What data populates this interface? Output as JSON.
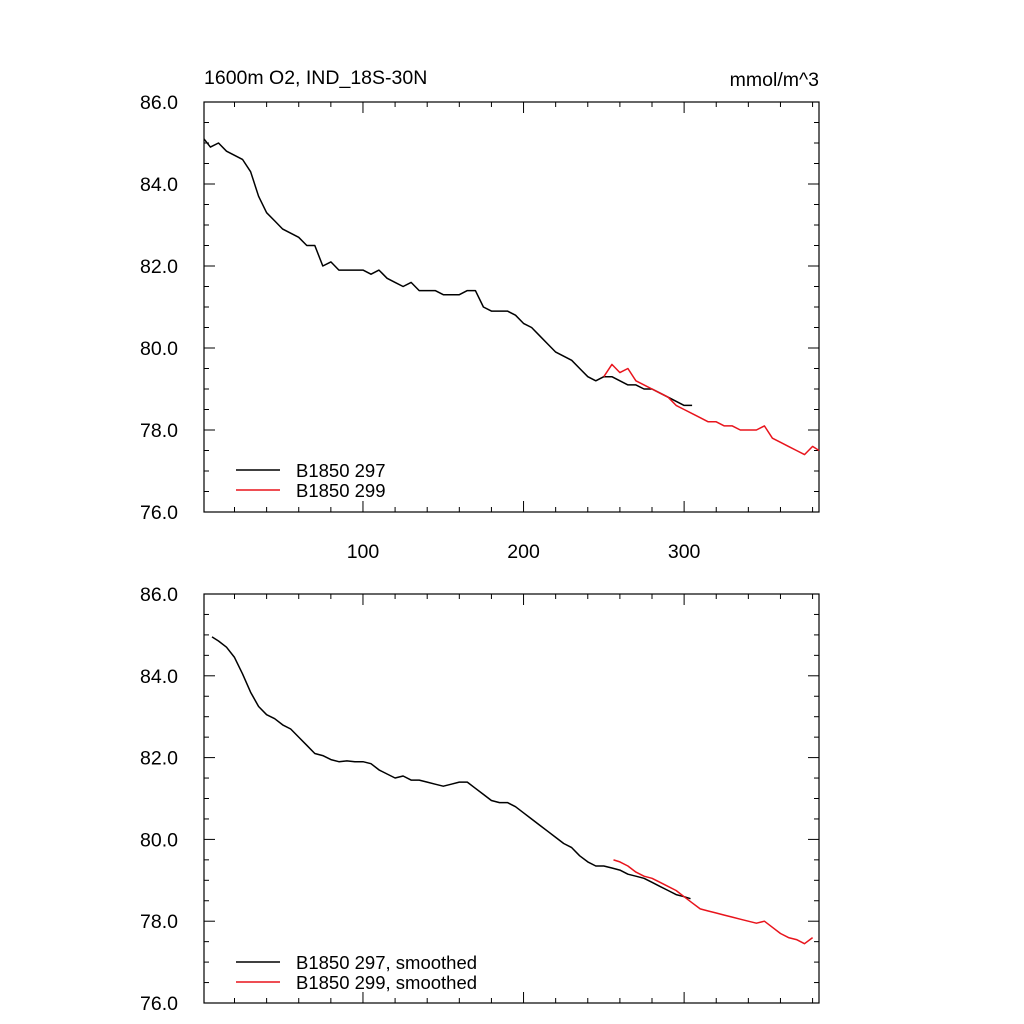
{
  "header": {
    "title": "1600m O2, IND_18S-30N",
    "units": "mmol/m^3"
  },
  "colors": {
    "run297": "#000000",
    "run299": "#e8141c",
    "axis": "#000000",
    "background": "#ffffff"
  },
  "chart_data": [
    {
      "type": "line",
      "panel": "raw",
      "xlim": [
        1,
        384
      ],
      "ylim": [
        76.0,
        86.0
      ],
      "x_ticks": [
        100,
        200,
        300
      ],
      "x_tick_labels": [
        "100",
        "200",
        "300"
      ],
      "y_ticks": [
        76,
        78,
        80,
        82,
        84,
        86
      ],
      "y_tick_labels": [
        "76.0",
        "78.0",
        "80.0",
        "82.0",
        "84.0",
        "86.0"
      ],
      "grid": false,
      "legend_position": "bottom-left",
      "series": [
        {
          "name": "B1850 297",
          "color": "#000000",
          "x": [
            1,
            5,
            10,
            15,
            20,
            25,
            30,
            35,
            40,
            45,
            50,
            55,
            60,
            65,
            70,
            75,
            80,
            85,
            90,
            95,
            100,
            105,
            110,
            115,
            120,
            125,
            130,
            135,
            140,
            145,
            150,
            155,
            160,
            165,
            170,
            175,
            180,
            185,
            190,
            195,
            200,
            205,
            210,
            215,
            220,
            225,
            230,
            235,
            240,
            245,
            250,
            255,
            260,
            265,
            270,
            275,
            280,
            285,
            290,
            295,
            300,
            305
          ],
          "values": [
            85.1,
            84.9,
            85.0,
            84.8,
            84.7,
            84.6,
            84.3,
            83.7,
            83.3,
            83.1,
            82.9,
            82.8,
            82.7,
            82.5,
            82.5,
            82.0,
            82.1,
            81.9,
            81.9,
            81.9,
            81.9,
            81.8,
            81.9,
            81.7,
            81.6,
            81.5,
            81.6,
            81.4,
            81.4,
            81.4,
            81.3,
            81.3,
            81.3,
            81.4,
            81.4,
            81.0,
            80.9,
            80.9,
            80.9,
            80.8,
            80.6,
            80.5,
            80.3,
            80.1,
            79.9,
            79.8,
            79.7,
            79.5,
            79.3,
            79.2,
            79.3,
            79.3,
            79.2,
            79.1,
            79.1,
            79.0,
            79.0,
            78.9,
            78.8,
            78.7,
            78.6,
            78.6
          ]
        },
        {
          "name": "B1850 299",
          "color": "#e8141c",
          "x": [
            250,
            255,
            260,
            265,
            270,
            275,
            280,
            285,
            290,
            295,
            300,
            305,
            310,
            315,
            320,
            325,
            330,
            335,
            340,
            345,
            350,
            355,
            360,
            365,
            370,
            375,
            380,
            384
          ],
          "values": [
            79.3,
            79.6,
            79.4,
            79.5,
            79.2,
            79.1,
            79.0,
            78.9,
            78.8,
            78.6,
            78.5,
            78.4,
            78.3,
            78.2,
            78.2,
            78.1,
            78.1,
            78.0,
            78.0,
            78.0,
            78.1,
            77.8,
            77.7,
            77.6,
            77.5,
            77.4,
            77.6,
            77.5
          ]
        }
      ]
    },
    {
      "type": "line",
      "panel": "smoothed",
      "xlim": [
        1,
        384
      ],
      "ylim": [
        76.0,
        86.0
      ],
      "y_ticks": [
        76,
        78,
        80,
        82,
        84,
        86
      ],
      "y_tick_labels": [
        "76.0",
        "78.0",
        "80.0",
        "82.0",
        "84.0",
        "86.0"
      ],
      "grid": false,
      "legend_position": "bottom-left",
      "series": [
        {
          "name": "B1850 297, smoothed",
          "color": "#000000",
          "x": [
            6,
            10,
            15,
            20,
            25,
            30,
            35,
            40,
            45,
            50,
            55,
            60,
            65,
            70,
            75,
            80,
            85,
            90,
            95,
            100,
            105,
            110,
            115,
            120,
            125,
            130,
            135,
            140,
            145,
            150,
            155,
            160,
            165,
            170,
            175,
            180,
            185,
            190,
            195,
            200,
            205,
            210,
            215,
            220,
            225,
            230,
            235,
            240,
            245,
            250,
            255,
            260,
            265,
            270,
            275,
            280,
            285,
            290,
            295,
            300,
            304
          ],
          "values": [
            84.95,
            84.85,
            84.7,
            84.45,
            84.05,
            83.6,
            83.25,
            83.05,
            82.95,
            82.8,
            82.7,
            82.5,
            82.3,
            82.1,
            82.05,
            81.95,
            81.9,
            81.92,
            81.9,
            81.9,
            81.85,
            81.7,
            81.6,
            81.5,
            81.55,
            81.45,
            81.45,
            81.4,
            81.35,
            81.3,
            81.35,
            81.4,
            81.4,
            81.25,
            81.1,
            80.95,
            80.9,
            80.9,
            80.8,
            80.65,
            80.5,
            80.35,
            80.2,
            80.05,
            79.9,
            79.8,
            79.6,
            79.45,
            79.35,
            79.35,
            79.3,
            79.25,
            79.15,
            79.1,
            79.05,
            78.95,
            78.85,
            78.75,
            78.65,
            78.6,
            78.55
          ]
        },
        {
          "name": "B1850 299, smoothed",
          "color": "#e8141c",
          "x": [
            256,
            260,
            265,
            270,
            275,
            280,
            285,
            290,
            295,
            300,
            305,
            310,
            315,
            320,
            325,
            330,
            335,
            340,
            345,
            350,
            355,
            360,
            365,
            370,
            375,
            380
          ],
          "values": [
            79.5,
            79.45,
            79.35,
            79.2,
            79.1,
            79.05,
            78.95,
            78.85,
            78.75,
            78.6,
            78.45,
            78.3,
            78.25,
            78.2,
            78.15,
            78.1,
            78.05,
            78.0,
            77.95,
            78.0,
            77.85,
            77.7,
            77.6,
            77.55,
            77.45,
            77.6
          ]
        }
      ]
    }
  ]
}
